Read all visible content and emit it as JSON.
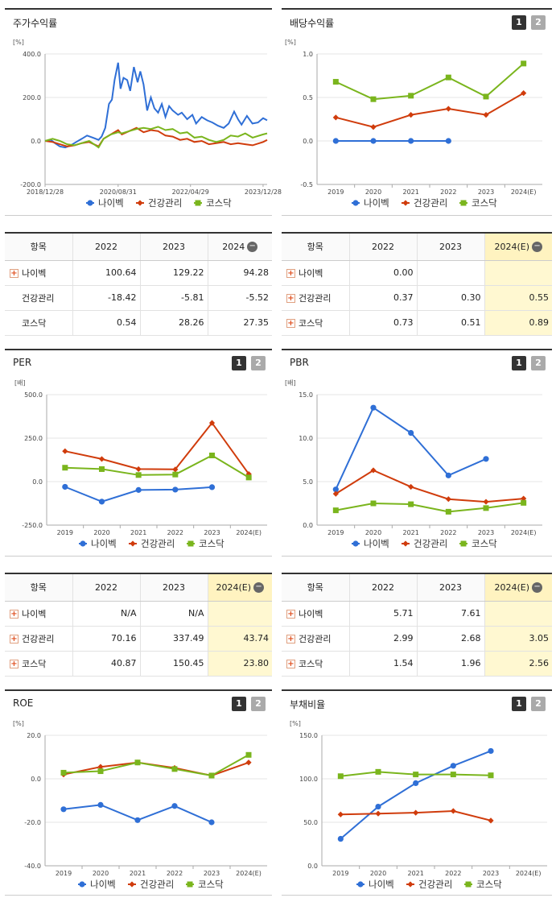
{
  "colors": {
    "navibeck": "#2f6fd6",
    "health": "#d03c0c",
    "kosdaq": "#7ab51d"
  },
  "legend": [
    "나이벡",
    "건강관리",
    "코스닥"
  ],
  "panels": {
    "stock": {
      "title": "주가수익률"
    },
    "dividend": {
      "title": "배당수익률",
      "btn1": "1",
      "btn2": "2"
    },
    "per": {
      "title": "PER",
      "btn1": "1",
      "btn2": "2"
    },
    "pbr": {
      "title": "PBR",
      "btn1": "1",
      "btn2": "2"
    },
    "roe": {
      "title": "ROE",
      "btn1": "1",
      "btn2": "2"
    },
    "debt": {
      "title": "부채비율",
      "btn1": "1",
      "btn2": "2"
    }
  },
  "tables": {
    "stock": {
      "headers": [
        "항목",
        "2022",
        "2023",
        "2024"
      ],
      "rows": [
        {
          "name": "나이벡",
          "v": [
            "100.64",
            "129.22",
            "94.28"
          ]
        },
        {
          "name": "건강관리",
          "v": [
            "-18.42",
            "-5.81",
            "-5.52"
          ]
        },
        {
          "name": "코스닥",
          "v": [
            "0.54",
            "28.26",
            "27.35"
          ]
        }
      ]
    },
    "dividend": {
      "headers": [
        "항목",
        "2022",
        "2023",
        "2024(E)"
      ],
      "rows": [
        {
          "name": "나이벡",
          "v": [
            "0.00",
            "",
            ""
          ]
        },
        {
          "name": "건강관리",
          "v": [
            "0.37",
            "0.30",
            "0.55"
          ]
        },
        {
          "name": "코스닥",
          "v": [
            "0.73",
            "0.51",
            "0.89"
          ]
        }
      ]
    },
    "per": {
      "headers": [
        "항목",
        "2022",
        "2023",
        "2024(E)"
      ],
      "rows": [
        {
          "name": "나이벡",
          "v": [
            "N/A",
            "N/A",
            ""
          ]
        },
        {
          "name": "건강관리",
          "v": [
            "70.16",
            "337.49",
            "43.74"
          ]
        },
        {
          "name": "코스닥",
          "v": [
            "40.87",
            "150.45",
            "23.80"
          ]
        }
      ]
    },
    "pbr": {
      "headers": [
        "항목",
        "2022",
        "2023",
        "2024(E)"
      ],
      "rows": [
        {
          "name": "나이벡",
          "v": [
            "5.71",
            "7.61",
            ""
          ]
        },
        {
          "name": "건강관리",
          "v": [
            "2.99",
            "2.68",
            "3.05"
          ]
        },
        {
          "name": "코스닥",
          "v": [
            "1.54",
            "1.96",
            "2.56"
          ]
        }
      ]
    }
  },
  "chart_data": [
    {
      "id": "stock",
      "type": "line",
      "unit": "[%]",
      "ylim": [
        -200,
        400
      ],
      "yticks": [
        -200,
        0,
        200,
        400
      ],
      "ytick_labels": [
        "-200.0",
        "0.0",
        "200.0",
        "400.0"
      ],
      "xticks": [
        "2018/12/28",
        "2020/08/31",
        "2022/04/29",
        "2023/12/28"
      ],
      "xlim": [
        "2018-12-28",
        "2024-01-31"
      ],
      "series": [
        {
          "name": "나이벡",
          "points": [
            [
              "2018-12-28",
              0
            ],
            [
              "2019-02-15",
              5
            ],
            [
              "2019-03-20",
              -10
            ],
            [
              "2019-05-01",
              -25
            ],
            [
              "2019-06-15",
              -30
            ],
            [
              "2019-08-01",
              -20
            ],
            [
              "2019-09-15",
              -5
            ],
            [
              "2019-11-01",
              10
            ],
            [
              "2019-12-15",
              25
            ],
            [
              "2020-02-01",
              15
            ],
            [
              "2020-03-20",
              5
            ],
            [
              "2020-04-15",
              20
            ],
            [
              "2020-05-15",
              60
            ],
            [
              "2020-06-15",
              170
            ],
            [
              "2020-07-10",
              190
            ],
            [
              "2020-08-01",
              280
            ],
            [
              "2020-08-31",
              360
            ],
            [
              "2020-09-20",
              240
            ],
            [
              "2020-10-15",
              290
            ],
            [
              "2020-11-15",
              280
            ],
            [
              "2020-12-10",
              230
            ],
            [
              "2021-01-10",
              340
            ],
            [
              "2021-02-10",
              270
            ],
            [
              "2021-03-05",
              320
            ],
            [
              "2021-04-01",
              260
            ],
            [
              "2021-05-01",
              140
            ],
            [
              "2021-06-01",
              200
            ],
            [
              "2021-07-01",
              150
            ],
            [
              "2021-08-01",
              130
            ],
            [
              "2021-09-01",
              170
            ],
            [
              "2021-10-01",
              110
            ],
            [
              "2021-11-01",
              160
            ],
            [
              "2021-12-01",
              140
            ],
            [
              "2022-01-15",
              120
            ],
            [
              "2022-02-15",
              130
            ],
            [
              "2022-04-01",
              100
            ],
            [
              "2022-05-15",
              120
            ],
            [
              "2022-06-15",
              80
            ],
            [
              "2022-08-01",
              110
            ],
            [
              "2022-09-15",
              95
            ],
            [
              "2022-10-30",
              85
            ],
            [
              "2022-12-15",
              70
            ],
            [
              "2023-02-01",
              60
            ],
            [
              "2023-03-15",
              80
            ],
            [
              "2023-04-30",
              135
            ],
            [
              "2023-06-01",
              100
            ],
            [
              "2023-07-01",
              75
            ],
            [
              "2023-08-15",
              115
            ],
            [
              "2023-09-30",
              80
            ],
            [
              "2023-11-15",
              85
            ],
            [
              "2023-12-28",
              105
            ],
            [
              "2024-01-31",
              95
            ]
          ]
        },
        {
          "name": "건강관리",
          "points": [
            [
              "2018-12-28",
              0
            ],
            [
              "2019-03-01",
              -5
            ],
            [
              "2019-05-01",
              -15
            ],
            [
              "2019-07-01",
              -25
            ],
            [
              "2019-09-01",
              -20
            ],
            [
              "2019-11-01",
              -10
            ],
            [
              "2020-01-01",
              -5
            ],
            [
              "2020-03-20",
              -25
            ],
            [
              "2020-05-01",
              10
            ],
            [
              "2020-07-01",
              30
            ],
            [
              "2020-08-31",
              50
            ],
            [
              "2020-10-01",
              30
            ],
            [
              "2020-12-01",
              45
            ],
            [
              "2021-02-01",
              60
            ],
            [
              "2021-04-01",
              40
            ],
            [
              "2021-06-01",
              50
            ],
            [
              "2021-08-01",
              45
            ],
            [
              "2021-10-01",
              25
            ],
            [
              "2021-12-01",
              20
            ],
            [
              "2022-02-01",
              5
            ],
            [
              "2022-04-01",
              10
            ],
            [
              "2022-06-01",
              -5
            ],
            [
              "2022-08-01",
              0
            ],
            [
              "2022-10-01",
              -15
            ],
            [
              "2022-12-01",
              -10
            ],
            [
              "2023-02-01",
              -5
            ],
            [
              "2023-04-01",
              -15
            ],
            [
              "2023-06-01",
              -10
            ],
            [
              "2023-08-01",
              -15
            ],
            [
              "2023-10-01",
              -20
            ],
            [
              "2023-12-28",
              -5
            ],
            [
              "2024-01-31",
              5
            ]
          ]
        },
        {
          "name": "코스닥",
          "points": [
            [
              "2018-12-28",
              0
            ],
            [
              "2019-03-01",
              10
            ],
            [
              "2019-05-01",
              0
            ],
            [
              "2019-07-01",
              -15
            ],
            [
              "2019-09-01",
              -20
            ],
            [
              "2019-11-01",
              -10
            ],
            [
              "2020-01-01",
              0
            ],
            [
              "2020-03-20",
              -30
            ],
            [
              "2020-05-01",
              10
            ],
            [
              "2020-07-01",
              30
            ],
            [
              "2020-08-31",
              40
            ],
            [
              "2020-10-01",
              35
            ],
            [
              "2020-12-01",
              45
            ],
            [
              "2021-02-01",
              55
            ],
            [
              "2021-04-01",
              60
            ],
            [
              "2021-06-01",
              55
            ],
            [
              "2021-08-01",
              65
            ],
            [
              "2021-10-01",
              50
            ],
            [
              "2021-12-01",
              55
            ],
            [
              "2022-02-01",
              35
            ],
            [
              "2022-04-01",
              40
            ],
            [
              "2022-06-01",
              15
            ],
            [
              "2022-08-01",
              20
            ],
            [
              "2022-10-01",
              5
            ],
            [
              "2022-12-01",
              -5
            ],
            [
              "2023-02-01",
              5
            ],
            [
              "2023-04-01",
              25
            ],
            [
              "2023-06-01",
              20
            ],
            [
              "2023-08-01",
              35
            ],
            [
              "2023-10-01",
              15
            ],
            [
              "2023-12-28",
              30
            ],
            [
              "2024-01-31",
              35
            ]
          ]
        }
      ]
    },
    {
      "id": "dividend",
      "type": "line",
      "unit": "[%]",
      "ylim": [
        -0.5,
        1.0
      ],
      "yticks": [
        -0.5,
        0,
        0.5,
        1.0
      ],
      "ytick_labels": [
        "-0.5",
        "0.0",
        "0.5",
        "1.0"
      ],
      "categories": [
        "2019",
        "2020",
        "2021",
        "2022",
        "2023",
        "2024(E)"
      ],
      "series": [
        {
          "name": "나이벡",
          "values": [
            0.0,
            0.0,
            0.0,
            0.0,
            null,
            null
          ]
        },
        {
          "name": "건강관리",
          "values": [
            0.27,
            0.16,
            0.3,
            0.37,
            0.3,
            0.55
          ]
        },
        {
          "name": "코스닥",
          "values": [
            0.68,
            0.48,
            0.52,
            0.73,
            0.51,
            0.89
          ]
        }
      ]
    },
    {
      "id": "per",
      "type": "line",
      "unit": "[배]",
      "ylim": [
        -250,
        500
      ],
      "yticks": [
        -250,
        0,
        250,
        500
      ],
      "ytick_labels": [
        "-250.0",
        "0.0",
        "250.0",
        "500.0"
      ],
      "categories": [
        "2019",
        "2020",
        "2021",
        "2022",
        "2023",
        "2024(E)"
      ],
      "series": [
        {
          "name": "나이벡",
          "values": [
            -30,
            -115,
            -48,
            -46,
            -32,
            null
          ]
        },
        {
          "name": "건강관리",
          "values": [
            175,
            130,
            72,
            70.16,
            337.49,
            43.74
          ]
        },
        {
          "name": "코스닥",
          "values": [
            80,
            72,
            38,
            40.87,
            150.45,
            23.8
          ]
        }
      ]
    },
    {
      "id": "pbr",
      "type": "line",
      "unit": "[배]",
      "ylim": [
        0,
        15
      ],
      "yticks": [
        0,
        5,
        10,
        15
      ],
      "ytick_labels": [
        "0.0",
        "5.0",
        "10.0",
        "15.0"
      ],
      "categories": [
        "2019",
        "2020",
        "2021",
        "2022",
        "2023",
        "2024(E)"
      ],
      "series": [
        {
          "name": "나이벡",
          "values": [
            4.1,
            13.5,
            10.6,
            5.71,
            7.61,
            null
          ]
        },
        {
          "name": "건강관리",
          "values": [
            3.6,
            6.3,
            4.4,
            2.99,
            2.68,
            3.05
          ]
        },
        {
          "name": "코스닥",
          "values": [
            1.7,
            2.5,
            2.4,
            1.54,
            1.96,
            2.56
          ]
        }
      ]
    },
    {
      "id": "roe",
      "type": "line",
      "unit": "[%]",
      "ylim": [
        -40,
        20
      ],
      "yticks": [
        -40,
        -20,
        0,
        20
      ],
      "ytick_labels": [
        "-40.0",
        "-20.0",
        "0.0",
        "20.0"
      ],
      "categories": [
        "2019",
        "2020",
        "2021",
        "2022",
        "2023",
        "2024(E)"
      ],
      "series": [
        {
          "name": "나이벡",
          "values": [
            -14,
            -12,
            -19,
            -12.5,
            -20,
            null
          ]
        },
        {
          "name": "건강관리",
          "values": [
            2,
            5.5,
            7.5,
            5,
            1.5,
            7.5
          ]
        },
        {
          "name": "코스닥",
          "values": [
            2.8,
            3.5,
            7.5,
            4.5,
            1.5,
            11
          ]
        }
      ]
    },
    {
      "id": "debt",
      "type": "line",
      "unit": "[%]",
      "ylim": [
        0,
        150
      ],
      "yticks": [
        0,
        50,
        100,
        150
      ],
      "ytick_labels": [
        "0.0",
        "50.0",
        "100.0",
        "150.0"
      ],
      "categories": [
        "2019",
        "2020",
        "2021",
        "2022",
        "2023",
        "2024(E)"
      ],
      "series": [
        {
          "name": "나이벡",
          "values": [
            31,
            68,
            95,
            115,
            132,
            null
          ]
        },
        {
          "name": "건강관리",
          "values": [
            59,
            60,
            61,
            63,
            52,
            null
          ]
        },
        {
          "name": "코스닥",
          "values": [
            103,
            108,
            105,
            105,
            104,
            null
          ]
        }
      ]
    }
  ]
}
